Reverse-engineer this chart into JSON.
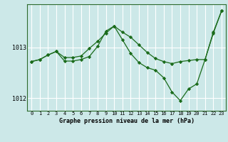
{
  "background_color": "#cce8e8",
  "grid_color": "#ffffff",
  "line_color": "#1a6b1a",
  "marker_color": "#1a6b1a",
  "title": "Graphe pression niveau de la mer (hPa)",
  "xlim": [
    -0.5,
    23.5
  ],
  "ylim": [
    1011.75,
    1013.85
  ],
  "yticks": [
    1012,
    1013
  ],
  "xticks": [
    0,
    1,
    2,
    3,
    4,
    5,
    6,
    7,
    8,
    9,
    10,
    11,
    12,
    13,
    14,
    15,
    16,
    17,
    18,
    19,
    20,
    21,
    22,
    23
  ],
  "series1_x": [
    0,
    1,
    2,
    3,
    4,
    5,
    6,
    7,
    8,
    9,
    10,
    11,
    12,
    13,
    14,
    15,
    16,
    17,
    18,
    19,
    20,
    21,
    22,
    23
  ],
  "series1_y": [
    1012.72,
    1012.76,
    1012.85,
    1012.92,
    1012.8,
    1012.8,
    1012.83,
    1012.98,
    1013.12,
    1013.28,
    1013.42,
    1013.3,
    1013.2,
    1013.05,
    1012.9,
    1012.78,
    1012.72,
    1012.68,
    1012.72,
    1012.74,
    1012.76,
    1012.76,
    1013.3,
    1013.72
  ],
  "series2_x": [
    0,
    1,
    2,
    3,
    4,
    5,
    6,
    7,
    8,
    9,
    10,
    11,
    12,
    13,
    14,
    15,
    16,
    17,
    18,
    19,
    20,
    21,
    22,
    23
  ],
  "series2_y": [
    1012.72,
    1012.76,
    1012.85,
    1012.92,
    1012.73,
    1012.73,
    1012.76,
    1012.82,
    1013.02,
    1013.32,
    1013.42,
    1013.15,
    1012.88,
    1012.7,
    1012.6,
    1012.55,
    1012.4,
    1012.12,
    1011.95,
    1012.18,
    1012.28,
    1012.76,
    1013.28,
    1013.72
  ]
}
